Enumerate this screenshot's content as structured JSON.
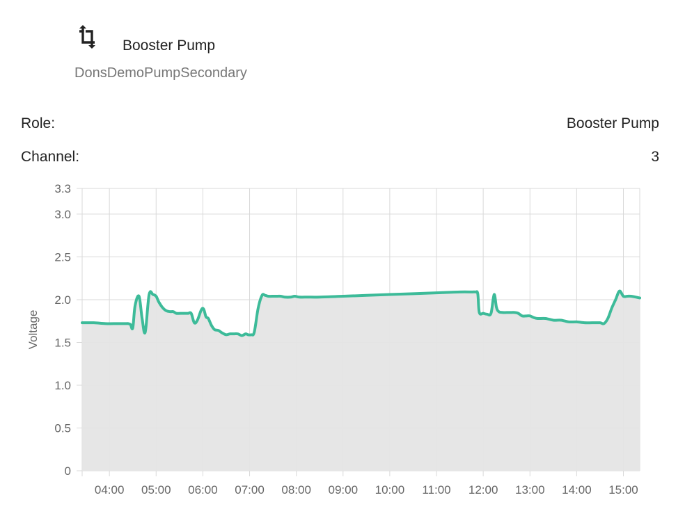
{
  "header": {
    "icon": "crop-icon",
    "device_name": "Booster Pump",
    "device_id": "DonsDemoPumpSecondary"
  },
  "details": [
    {
      "label": "Role:",
      "value": "Booster Pump"
    },
    {
      "label": "Channel:",
      "value": "3"
    }
  ],
  "colors": {
    "line": "#3dbb99",
    "fill": "#e5e5e5",
    "grid": "#d9d9d9",
    "axis_text": "#666666"
  },
  "chart_data": {
    "type": "area",
    "ylabel": "Voltage",
    "xlabel": "",
    "ylim": [
      0,
      3.3
    ],
    "xlim": [
      "03:25",
      "15:21"
    ],
    "yticks": [
      {
        "value": 0,
        "label": "0"
      },
      {
        "value": 0.5,
        "label": "0.5"
      },
      {
        "value": 1.0,
        "label": "1.0"
      },
      {
        "value": 1.5,
        "label": "1.5"
      },
      {
        "value": 2.0,
        "label": "2.0"
      },
      {
        "value": 2.5,
        "label": "2.5"
      },
      {
        "value": 3.0,
        "label": "3.0"
      },
      {
        "value": 3.3,
        "label": "3.3"
      }
    ],
    "xticks": [
      "04:00",
      "05:00",
      "06:00",
      "07:00",
      "08:00",
      "09:00",
      "10:00",
      "11:00",
      "12:00",
      "13:00",
      "14:00",
      "15:00"
    ],
    "grid": true,
    "legend": "none",
    "series": [
      {
        "x": [
          "03:25",
          "03:40",
          "03:55",
          "04:10",
          "04:20",
          "04:24",
          "04:27",
          "04:30",
          "04:33",
          "04:38",
          "04:42",
          "04:46",
          "04:51",
          "04:56",
          "05:00",
          "05:03",
          "05:08",
          "05:13",
          "05:18",
          "05:22",
          "05:26",
          "05:31",
          "05:36",
          "05:41",
          "05:45",
          "05:49",
          "05:53",
          "05:58",
          "06:01",
          "06:04",
          "06:07",
          "06:11",
          "06:15",
          "06:20",
          "06:25",
          "06:30",
          "06:35",
          "06:40",
          "06:45",
          "06:50",
          "06:55",
          "06:58",
          "07:02",
          "07:06",
          "07:11",
          "07:16",
          "07:20",
          "07:24",
          "07:29",
          "07:34",
          "07:40",
          "07:45",
          "07:53",
          "07:58",
          "08:04",
          "08:15",
          "08:30",
          "09:00",
          "10:00",
          "10:30",
          "11:00",
          "11:30",
          "11:45",
          "11:50",
          "11:53",
          "11:55",
          "12:00",
          "12:05",
          "12:10",
          "12:14",
          "12:17",
          "12:20",
          "12:25",
          "12:30",
          "12:35",
          "12:40",
          "12:45",
          "12:50",
          "12:55",
          "13:00",
          "13:05",
          "13:10",
          "13:20",
          "13:30",
          "13:40",
          "13:50",
          "14:00",
          "14:10",
          "14:20",
          "14:30",
          "14:35",
          "14:40",
          "14:45",
          "14:50",
          "14:55",
          "15:00",
          "15:05",
          "15:10",
          "15:21"
        ],
        "values": [
          1.73,
          1.73,
          1.72,
          1.72,
          1.72,
          1.72,
          1.71,
          1.67,
          1.93,
          2.04,
          1.78,
          1.62,
          2.06,
          2.06,
          2.04,
          1.98,
          1.91,
          1.87,
          1.86,
          1.86,
          1.84,
          1.84,
          1.84,
          1.84,
          1.84,
          1.73,
          1.76,
          1.88,
          1.89,
          1.8,
          1.78,
          1.7,
          1.65,
          1.64,
          1.61,
          1.59,
          1.6,
          1.6,
          1.6,
          1.58,
          1.6,
          1.59,
          1.59,
          1.62,
          1.9,
          2.05,
          2.05,
          2.04,
          2.04,
          2.04,
          2.04,
          2.03,
          2.03,
          2.04,
          2.03,
          2.03,
          2.03,
          2.04,
          2.06,
          2.07,
          2.08,
          2.09,
          2.09,
          2.09,
          2.07,
          1.85,
          1.84,
          1.83,
          1.84,
          2.06,
          1.91,
          1.86,
          1.85,
          1.85,
          1.85,
          1.85,
          1.84,
          1.81,
          1.81,
          1.81,
          1.79,
          1.78,
          1.78,
          1.76,
          1.76,
          1.74,
          1.74,
          1.73,
          1.73,
          1.73,
          1.72,
          1.78,
          1.9,
          2.0,
          2.1,
          2.04,
          2.04,
          2.04,
          2.02
        ]
      }
    ]
  }
}
